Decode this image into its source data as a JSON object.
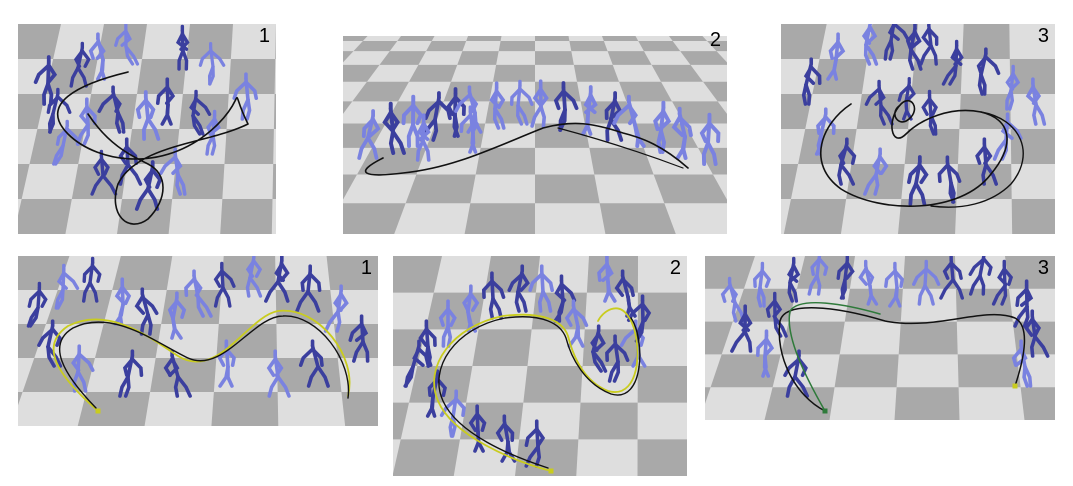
{
  "figure": {
    "panels": [
      {
        "label": "1"
      },
      {
        "label": "2"
      },
      {
        "label": "3"
      },
      {
        "label": "1"
      },
      {
        "label": "2"
      },
      {
        "label": "3"
      }
    ]
  },
  "colors": {
    "background": "#ffffff",
    "tile_dark": "#a9a9a9",
    "tile_light": "#dedede",
    "skeleton_dark": "#3b3f9e",
    "skeleton_light": "#7a82e0",
    "path_black": "#111111",
    "path_yellow": "#c9cc1e",
    "path_green": "#2e7a3a"
  }
}
